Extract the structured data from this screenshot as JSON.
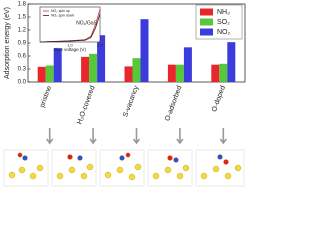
{
  "chart_data": [
    {
      "type": "bar",
      "ylabel": "Adsorption energy (eV)",
      "categories": [
        "pristine",
        "H₂O-covered",
        "S-vacancy",
        "O-adsorbed",
        "O-doped"
      ],
      "series": [
        {
          "name": "NH₃",
          "color": "#e8262b",
          "values": [
            0.35,
            0.58,
            0.36,
            0.4,
            0.4
          ]
        },
        {
          "name": "SO₂",
          "color": "#56c93a",
          "values": [
            0.38,
            0.65,
            0.55,
            0.4,
            0.42
          ]
        },
        {
          "name": "NO₂",
          "color": "#3c3cdc",
          "values": [
            0.78,
            1.08,
            1.45,
            0.8,
            0.92
          ]
        }
      ],
      "ylim": [
        0,
        1.8
      ],
      "yticks": [
        {
          "value": 0,
          "label": "0.0"
        },
        0.3,
        0.6,
        0.9,
        1.2,
        1.5,
        1.8
      ],
      "legend": "upper right"
    },
    {
      "type": "line",
      "annotation": "NO₂/GaS",
      "xlabel": "Bias voltage (V)",
      "x": [
        0,
        0.5,
        1,
        1.5,
        1.7,
        1.85,
        2
      ],
      "series": [
        {
          "name": "NO₂ spin up",
          "color": "#e8262b",
          "values": [
            0,
            0.05,
            0.1,
            0.2,
            0.5,
            1.5,
            2.8
          ]
        },
        {
          "name": "NO₂ spin down",
          "color": "#222222",
          "values": [
            0,
            0.04,
            0.08,
            0.15,
            0.4,
            1.2,
            2.4
          ]
        }
      ],
      "xlim": [
        0,
        2
      ],
      "ylim": [
        0,
        3
      ],
      "xticks": [
        {
          "value": 1,
          "label": "1.0"
        },
        {
          "value": 2,
          "label": "2.0"
        }
      ]
    }
  ]
}
